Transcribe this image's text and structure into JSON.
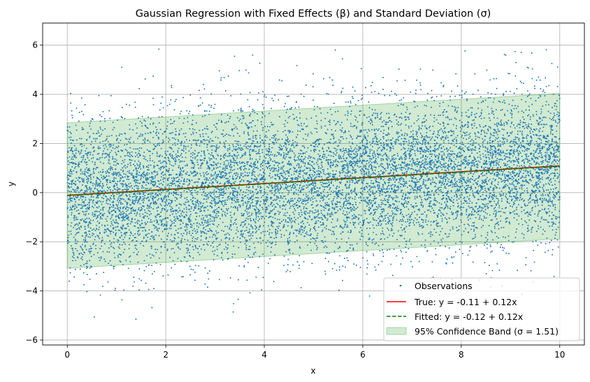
{
  "chart_data": {
    "type": "scatter",
    "title": "Gaussian Regression with Fixed Effects (β) and Standard Deviation (σ)",
    "xlabel": "x",
    "ylabel": "y",
    "xlim": [
      -0.5,
      10.5
    ],
    "ylim": [
      -6.2,
      6.9
    ],
    "xticks": [
      0,
      2,
      4,
      6,
      8,
      10
    ],
    "yticks": [
      -6,
      -4,
      -2,
      0,
      2,
      4,
      6
    ],
    "grid": true,
    "legend_position": "bottom-right",
    "observations": {
      "name": "Observations",
      "color": "#1f77b4",
      "approx_count": 10000,
      "x_range": [
        0,
        10
      ],
      "noise_sigma": 1.51,
      "y_range_observed": [
        -5.6,
        6.3
      ]
    },
    "series": [
      {
        "name": "True: y = -0.11 + 0.12x",
        "type": "line",
        "style": "solid",
        "color": "#ff0000",
        "intercept": -0.11,
        "slope": 0.12,
        "x": [
          0,
          10
        ],
        "y": [
          -0.11,
          1.09
        ]
      },
      {
        "name": "Fitted: y = -0.12 + 0.12x",
        "type": "line",
        "style": "dashed",
        "color": "#008000",
        "intercept": -0.12,
        "slope": 0.12,
        "x": [
          0,
          10
        ],
        "y": [
          -0.12,
          1.08
        ]
      }
    ],
    "confidence_band": {
      "name": "95% Confidence Band (σ = 1.51)",
      "color": "#2ca02c",
      "x": [
        0,
        10
      ],
      "lower": [
        -3.08,
        -1.88
      ],
      "upper": [
        2.84,
        4.04
      ]
    }
  }
}
